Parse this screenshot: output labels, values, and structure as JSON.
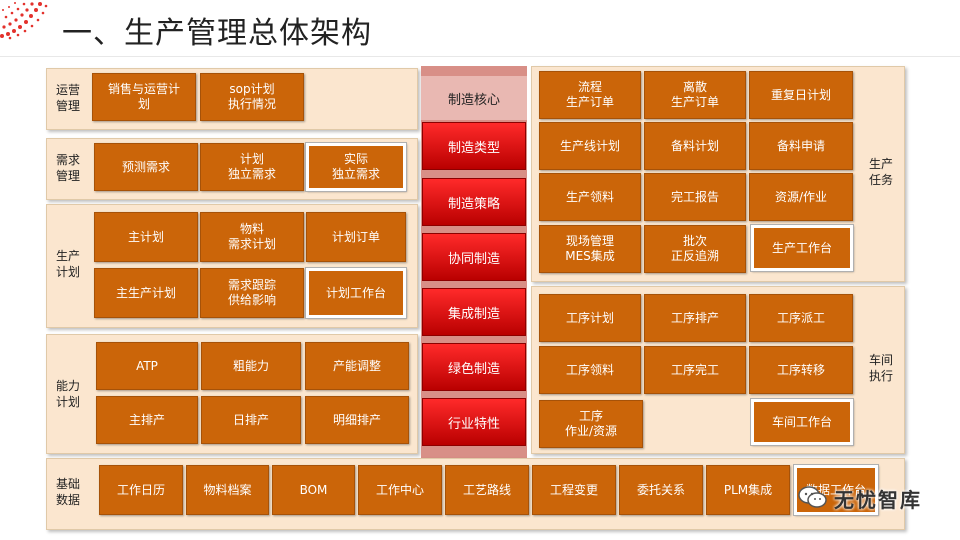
{
  "title": "一、生产管理总体架构",
  "core": {
    "title": "制造核心",
    "items": [
      "制造类型",
      "制造策略",
      "协同制造",
      "集成制造",
      "绿色制造",
      "行业特性"
    ]
  },
  "left": {
    "operations": {
      "label": "运营\n管理",
      "boxes": [
        "销售与运营计\n划",
        "sop计划\n执行情况"
      ]
    },
    "demand": {
      "label": "需求\n管理",
      "boxes": [
        "预测需求",
        "计划\n独立需求",
        "实际\n独立需求"
      ]
    },
    "production_plan": {
      "label": "生产\n计划",
      "boxes": [
        "主计划",
        "物料\n需求计划",
        "计划订单",
        "主生产计划",
        "需求跟踪\n供给影响",
        "计划工作台"
      ]
    },
    "capacity": {
      "label": "能力\n计划",
      "boxes": [
        "ATP",
        "粗能力",
        "产能调整",
        "主排产",
        "日排产",
        "明细排产"
      ]
    }
  },
  "base": {
    "label": "基础\n数据",
    "boxes": [
      "工作日历",
      "物料档案",
      "BOM",
      "工作中心",
      "工艺路线",
      "工程变更",
      "委托关系",
      "PLM集成",
      "数据工作台"
    ]
  },
  "right": {
    "tasks": {
      "label": "生产\n任务",
      "boxes": [
        "流程\n生产订单",
        "离散\n生产订单",
        "重复日计划",
        "生产线计划",
        "备料计划",
        "备料申请",
        "生产领料",
        "完工报告",
        "资源/作业",
        "现场管理\nMES集成",
        "批次\n正反追溯",
        "生产工作台"
      ]
    },
    "workshop": {
      "label": "车间\n执行",
      "boxes": [
        "工序计划",
        "工序排产",
        "工序派工",
        "工序领料",
        "工序完工",
        "工序转移",
        "工序\n作业/资源",
        "车间工作台"
      ]
    }
  },
  "watermark": {
    "text": "无忧智库",
    "icon": "wechat-icon"
  },
  "colors": {
    "box": "#cb6509",
    "panel": "#fbe6cf",
    "core": "#d88f87",
    "red": "#e00000"
  }
}
